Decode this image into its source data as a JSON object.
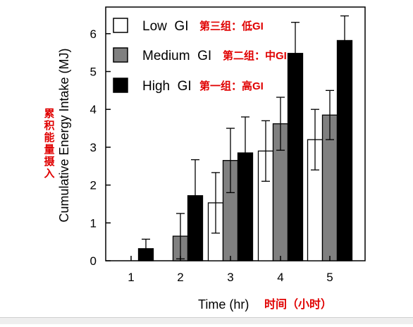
{
  "chart_data": {
    "type": "bar",
    "categories": [
      "1",
      "2",
      "3",
      "4",
      "5"
    ],
    "series": [
      {
        "name": "Low  GI",
        "annotation": "第三组：低GI",
        "values": [
          0,
          0,
          1.53,
          2.9,
          3.2
        ],
        "errors": [
          0,
          0,
          0.8,
          0.8,
          0.8
        ],
        "color": "#ffffff"
      },
      {
        "name": "Medium  GI",
        "annotation": "第二组：中GI",
        "values": [
          0,
          0.65,
          2.65,
          3.62,
          3.85
        ],
        "errors": [
          0,
          0.6,
          0.85,
          0.7,
          0.65
        ],
        "color": "#808080"
      },
      {
        "name": "High  GI",
        "annotation": "第一组：高GI",
        "values": [
          0.32,
          1.72,
          2.85,
          5.48,
          5.82
        ],
        "errors": [
          0.25,
          0.95,
          0.95,
          0.82,
          0.65
        ],
        "color": "#000000"
      }
    ],
    "xlabel": "Time (hr)",
    "xlabel_annotation": "时间（小时）",
    "ylabel": "Cumulative Energy Intake (MJ)",
    "ylabel_annotation": "累积能量摄入",
    "ylim": [
      0,
      6.5
    ],
    "yticks": [
      0,
      1,
      2,
      3,
      4,
      5,
      6
    ],
    "grid": false,
    "legend": "top-left"
  }
}
